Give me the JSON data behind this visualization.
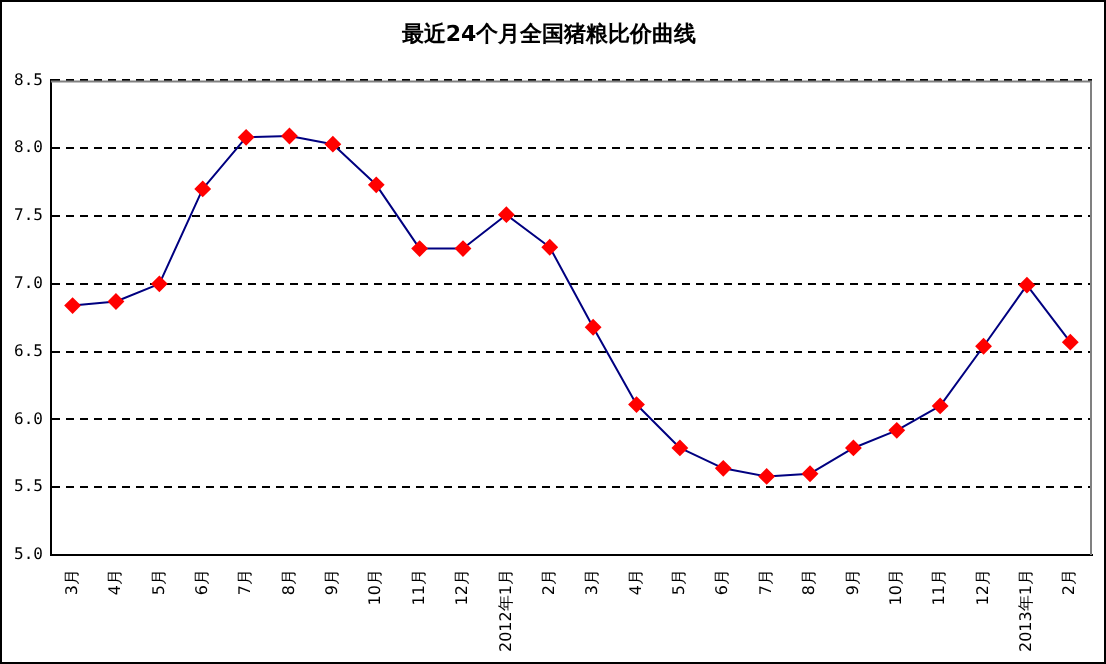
{
  "chart_data": {
    "type": "line",
    "title": "最近24个月全国猪粮比价曲线",
    "categories": [
      "3月",
      "4月",
      "5月",
      "6月",
      "7月",
      "8月",
      "9月",
      "10月",
      "11月",
      "12月",
      "2012年1月",
      "2月",
      "3月",
      "4月",
      "5月",
      "6月",
      "7月",
      "8月",
      "9月",
      "10月",
      "11月",
      "12月",
      "2013年1月",
      "2月"
    ],
    "series": [
      {
        "color": "#000080",
        "colors": [
          "#ff0000",
          "#ff0000",
          "#ff0000",
          "#ff0000",
          "#ff0000",
          "#ff0000",
          "#ff0000",
          "#ff0000",
          "#ff0000",
          "#ff0000",
          "#ff0000",
          "#ff0000",
          "#ff0000",
          "#ff0000",
          "#ff0000",
          "#ff0000",
          "#ff0000",
          "#ff0000",
          "#ff0000",
          "#ff0000",
          "#ff0000",
          "#ff0000",
          "#ff0000",
          "#ff0000"
        ],
        "values": [
          6.84,
          6.87,
          7.0,
          7.7,
          8.08,
          8.09,
          8.03,
          7.73,
          7.26,
          7.26,
          7.51,
          7.27,
          6.68,
          6.11,
          5.79,
          5.64,
          5.58,
          5.6,
          5.79,
          5.92,
          6.1,
          6.54,
          6.99,
          6.57
        ]
      }
    ],
    "marker": "diamond",
    "line_style": "solid",
    "ylim": [
      5.0,
      8.5
    ],
    "yticks": [
      {
        "value": 5,
        "label": "5.0"
      },
      {
        "value": 5.5,
        "label": "5.5"
      },
      {
        "value": 6,
        "label": "6.0"
      },
      {
        "value": 6.5,
        "label": "6.5"
      },
      {
        "value": 7,
        "label": "7.0"
      },
      {
        "value": 7.5,
        "label": "7.5"
      },
      {
        "value": 8,
        "label": "8.0"
      },
      {
        "value": 8.5,
        "label": "8.5"
      }
    ],
    "grid": "y",
    "legend": false
  }
}
